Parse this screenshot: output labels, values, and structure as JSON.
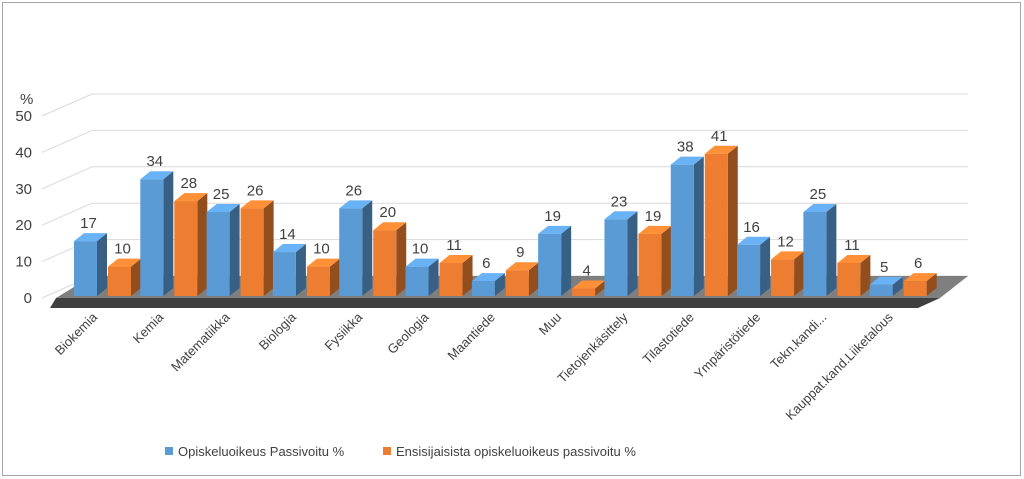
{
  "chart_data": {
    "type": "bar",
    "title": "",
    "xlabel": "",
    "ylabel": "%",
    "ylim": [
      0,
      50
    ],
    "yticks": [
      "0",
      "10",
      "20",
      "30",
      "40",
      "50"
    ],
    "categories": [
      "Biokemia",
      "Kemia",
      "Matematiikka",
      "Biologia",
      "Fysiikka",
      "Geologia",
      "Maantiede",
      "Muu",
      "Tietojenkäsittely",
      "Tilastotiede",
      "Ympäristötiede",
      "Tekn.kandi...",
      "Kauppat.kand.Liiketalous"
    ],
    "series": [
      {
        "name": "Opiskeluoikeus Passivoitu %",
        "values": [
          17,
          34,
          25,
          14,
          26,
          10,
          6,
          19,
          23,
          38,
          16,
          25,
          5
        ],
        "color": "#5b9bd5"
      },
      {
        "name": "Ensisijaisista opiskeluoikeus passivoitu %",
        "values": [
          10,
          28,
          26,
          10,
          20,
          11,
          9,
          4,
          19,
          41,
          12,
          11,
          6
        ],
        "color": "#ed7d31"
      }
    ],
    "legend_position": "bottom",
    "grid": true
  }
}
